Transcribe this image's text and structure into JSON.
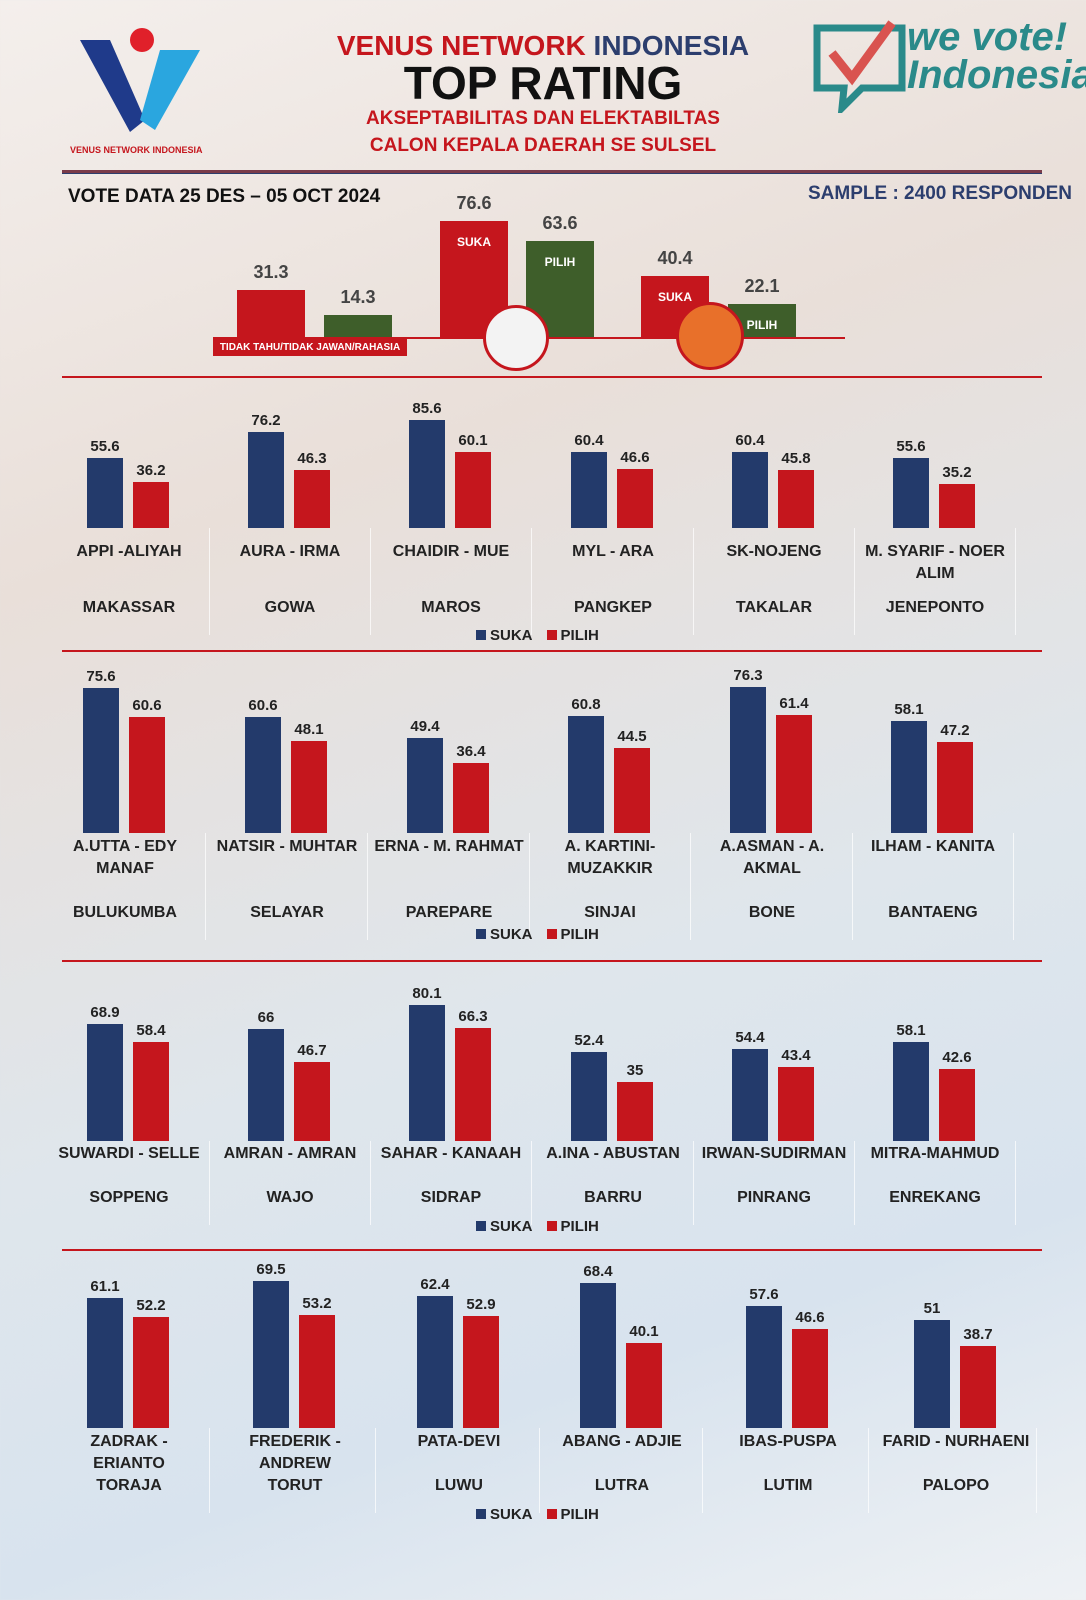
{
  "header": {
    "org_left": "VENUS NETWORK",
    "org_right": "INDONESIA",
    "title": "TOP RATING",
    "subtitle1": "AKSEPTABILITAS DAN ELEKTABILTAS",
    "subtitle2": "CALON KEPALA DAERAH SE SULSEL",
    "logo_left_text": "VENUS NETWORK INDONESIA",
    "logo_right_text": "we vote! Indonesia",
    "vote_data": "VOTE DATA 25 DES – 05 OCT 2024",
    "sample": "SAMPLE : 2400 RESPONDEN"
  },
  "colors": {
    "suka": "#233a6b",
    "pilih": "#c5161d",
    "green": "#3e5e2a",
    "red": "#c5161d"
  },
  "chart_data": [
    {
      "type": "bar",
      "title": "Provincial summary",
      "ylim": [
        0,
        80
      ],
      "bars": [
        {
          "value": 31.3,
          "color": "red",
          "label": ""
        },
        {
          "value": 14.3,
          "color": "green",
          "label": ""
        },
        {
          "value": 76.6,
          "color": "red",
          "label": "SUKA"
        },
        {
          "value": 63.6,
          "color": "green",
          "label": "PILIH"
        },
        {
          "value": 40.4,
          "color": "red",
          "label": "SUKA"
        },
        {
          "value": 22.1,
          "color": "green",
          "label": "PILIH"
        }
      ],
      "group_label": "TIDAK TAHU/TIDAK JAWAN/RAHASIA"
    },
    {
      "type": "bar",
      "legend": [
        "SUKA",
        "PILIH"
      ],
      "series": [
        "SUKA",
        "PILIH"
      ],
      "categories": [
        {
          "pair": "APPI -ALIYAH",
          "region": "MAKASSAR",
          "values": [
            55.6,
            36.2
          ]
        },
        {
          "pair": "AURA - IRMA",
          "region": "GOWA",
          "values": [
            76.2,
            46.3
          ]
        },
        {
          "pair": "CHAIDIR - MUE",
          "region": "MAROS",
          "values": [
            85.6,
            60.1
          ]
        },
        {
          "pair": "MYL - ARA",
          "region": "PANGKEP",
          "values": [
            60.4,
            46.6
          ]
        },
        {
          "pair": "SK-NOJENG",
          "region": "TAKALAR",
          "values": [
            60.4,
            45.8
          ]
        },
        {
          "pair": "M. SYARIF - NOER ALIM",
          "region": "JENEPONTO",
          "values": [
            55.6,
            35.2
          ]
        }
      ]
    },
    {
      "type": "bar",
      "legend": [
        "SUKA",
        "PILIH"
      ],
      "series": [
        "SUKA",
        "PILIH"
      ],
      "categories": [
        {
          "pair": "A.UTTA - EDY MANAF",
          "region": "BULUKUMBA",
          "values": [
            75.6,
            60.6
          ]
        },
        {
          "pair": "NATSIR - MUHTAR",
          "region": "SELAYAR",
          "values": [
            60.6,
            48.1
          ]
        },
        {
          "pair": "ERNA - M. RAHMAT",
          "region": "PAREPARE",
          "values": [
            49.4,
            36.4
          ]
        },
        {
          "pair": "A. KARTINI-MUZAKKIR",
          "region": "SINJAI",
          "values": [
            60.8,
            44.5
          ]
        },
        {
          "pair": "A.ASMAN - A. AKMAL",
          "region": "BONE",
          "values": [
            76.3,
            61.4
          ]
        },
        {
          "pair": "ILHAM - KANITA",
          "region": "BANTAENG",
          "values": [
            58.1,
            47.2
          ]
        }
      ]
    },
    {
      "type": "bar",
      "legend": [
        "SUKA",
        "PILIH"
      ],
      "series": [
        "SUKA",
        "PILIH"
      ],
      "categories": [
        {
          "pair": "SUWARDI - SELLE",
          "region": "SOPPENG",
          "values": [
            68.9,
            58.4
          ]
        },
        {
          "pair": "AMRAN - AMRAN",
          "region": "WAJO",
          "values": [
            66,
            46.7
          ]
        },
        {
          "pair": "SAHAR - KANAAH",
          "region": "SIDRAP",
          "values": [
            80.1,
            66.3
          ]
        },
        {
          "pair": "A.INA - ABUSTAN",
          "region": "BARRU",
          "values": [
            52.4,
            35
          ]
        },
        {
          "pair": "IRWAN-SUDIRMAN",
          "region": "PINRANG",
          "values": [
            54.4,
            43.4
          ]
        },
        {
          "pair": "MITRA-MAHMUD",
          "region": "ENREKANG",
          "values": [
            58.1,
            42.6
          ]
        }
      ]
    },
    {
      "type": "bar",
      "legend": [
        "SUKA",
        "PILIH"
      ],
      "series": [
        "SUKA",
        "PILIH"
      ],
      "categories": [
        {
          "pair": "ZADRAK - ERIANTO",
          "region": "TORAJA",
          "values": [
            61.1,
            52.2
          ]
        },
        {
          "pair": "FREDERIK - ANDREW",
          "region": "TORUT",
          "values": [
            69.5,
            53.2
          ]
        },
        {
          "pair": "PATA-DEVI",
          "region": "LUWU",
          "values": [
            62.4,
            52.9
          ]
        },
        {
          "pair": "ABANG - ADJIE",
          "region": "LUTRA",
          "values": [
            68.4,
            40.1
          ]
        },
        {
          "pair": "IBAS-PUSPA",
          "region": "LUTIM",
          "values": [
            57.6,
            46.6
          ]
        },
        {
          "pair": "FARID - NURHAENI",
          "region": "PALOPO",
          "values": [
            51,
            38.7
          ]
        }
      ]
    }
  ]
}
